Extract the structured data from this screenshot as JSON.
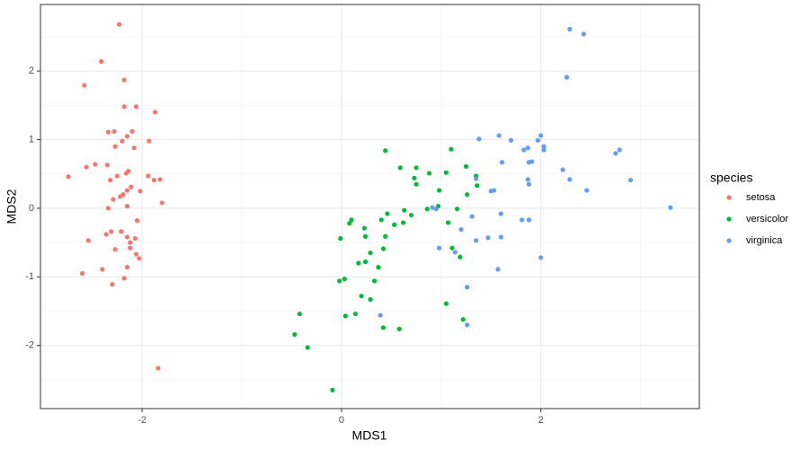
{
  "chart_data": {
    "type": "scatter",
    "xlabel": "MDS1",
    "ylabel": "MDS2",
    "legend_title": "species",
    "legend_position": "right",
    "grid": true,
    "xlim": [
      -3.02,
      3.59
    ],
    "ylim": [
      -2.92,
      2.97
    ],
    "xticks": [
      -2,
      0,
      2
    ],
    "yticks": [
      -2,
      -1,
      0,
      1,
      2
    ],
    "x_minor_grid": [
      -3,
      -1,
      1,
      3
    ],
    "y_minor_grid": [
      -2.5,
      -1.5,
      -0.5,
      0.5,
      1.5,
      2.5
    ],
    "series": [
      {
        "name": "setosa",
        "color": "#F8766D",
        "x": [
          -2.23,
          -2.41,
          -2.58,
          -2.18,
          -2.06,
          -2.18,
          -1.87,
          -2.34,
          -2.28,
          -2.1,
          -2.15,
          -2.2,
          -1.93,
          -2.27,
          -2.08,
          -2.47,
          -2.35,
          -2.56,
          -2.74,
          -2.14,
          -2.25,
          -2.16,
          -1.94,
          -1.88,
          -1.82,
          -2.32,
          -2.11,
          -2.15,
          -2.02,
          -2.19,
          -2.29,
          -2.22,
          -1.8,
          -2.34,
          -2.15,
          -2.05,
          -2.31,
          -2.36,
          -2.21,
          -2.15,
          -2.07,
          -2.12,
          -2.54,
          -2.12,
          -2.27,
          -2.06,
          -2.03,
          -2.4,
          -2.6,
          -2.15,
          -2.3,
          -2.18,
          -1.84
        ],
        "y": [
          2.68,
          2.14,
          1.79,
          1.87,
          1.48,
          1.48,
          1.4,
          1.11,
          1.12,
          1.12,
          1.05,
          0.98,
          0.98,
          0.9,
          0.88,
          0.64,
          0.63,
          0.6,
          0.46,
          0.54,
          0.47,
          0.51,
          0.47,
          0.41,
          0.42,
          0.41,
          0.31,
          0.26,
          0.25,
          0.2,
          0.13,
          0.17,
          0.08,
          0.0,
          0.03,
          -0.18,
          -0.34,
          -0.38,
          -0.34,
          -0.42,
          -0.44,
          -0.5,
          -0.47,
          -0.58,
          -0.6,
          -0.67,
          -0.73,
          -0.89,
          -0.95,
          -0.86,
          -1.11,
          -1.02,
          -2.33
        ]
      },
      {
        "name": "versicolor",
        "color": "#00BA38",
        "x": [
          0.44,
          1.1,
          0.59,
          0.75,
          0.73,
          0.88,
          1.05,
          1.25,
          0.98,
          0.75,
          0.97,
          0.86,
          0.63,
          0.7,
          0.62,
          0.53,
          0.46,
          0.4,
          0.1,
          0.08,
          0.23,
          0.24,
          -0.01,
          0.44,
          1.07,
          1.11,
          1.19,
          1.35,
          1.36,
          1.26,
          1.16,
          0.17,
          0.29,
          0.42,
          0.24,
          0.37,
          -0.02,
          0.03,
          0.33,
          0.2,
          0.29,
          0.14,
          0.04,
          -0.42,
          -0.47,
          -0.34,
          0.42,
          0.58,
          1.05,
          1.22,
          -0.09
        ],
        "y": [
          0.84,
          0.86,
          0.59,
          0.59,
          0.44,
          0.51,
          0.52,
          0.61,
          0.26,
          0.35,
          0.03,
          -0.01,
          -0.03,
          -0.1,
          -0.21,
          -0.24,
          -0.08,
          -0.17,
          -0.17,
          -0.22,
          -0.29,
          -0.41,
          -0.44,
          -0.41,
          -0.21,
          -0.58,
          -0.71,
          0.47,
          0.33,
          0.2,
          -0.01,
          -0.8,
          -0.65,
          -0.59,
          -0.78,
          -0.86,
          -1.06,
          -1.03,
          -1.06,
          -1.28,
          -1.33,
          -1.54,
          -1.57,
          -1.54,
          -1.84,
          -2.03,
          -1.74,
          -1.76,
          -1.39,
          -1.62,
          -2.65
        ]
      },
      {
        "name": "virginica",
        "color": "#619CFF",
        "x": [
          2.29,
          2.43,
          2.26,
          1.58,
          1.38,
          1.7,
          1.83,
          1.97,
          2.0,
          2.03,
          2.03,
          1.87,
          1.88,
          1.91,
          1.61,
          1.35,
          1.5,
          1.53,
          1.87,
          1.88,
          2.29,
          2.22,
          2.46,
          2.75,
          2.79,
          2.9,
          3.3,
          1.6,
          1.31,
          1.2,
          1.35,
          1.47,
          1.6,
          1.81,
          1.88,
          0.95,
          0.91,
          0.98,
          1.14,
          1.57,
          2.0,
          1.26,
          0.39,
          1.26
        ],
        "y": [
          2.61,
          2.54,
          1.91,
          1.06,
          1.01,
          0.99,
          0.85,
          0.99,
          1.06,
          0.9,
          0.85,
          0.88,
          0.67,
          0.68,
          0.67,
          0.43,
          0.25,
          0.26,
          0.42,
          0.35,
          0.42,
          0.56,
          0.26,
          0.8,
          0.85,
          0.41,
          0.01,
          -0.08,
          -0.12,
          -0.31,
          -0.47,
          -0.43,
          -0.42,
          -0.17,
          -0.17,
          -0.01,
          0.01,
          -0.58,
          -0.64,
          -0.89,
          -0.72,
          -1.15,
          -1.56,
          -1.7
        ]
      }
    ]
  }
}
